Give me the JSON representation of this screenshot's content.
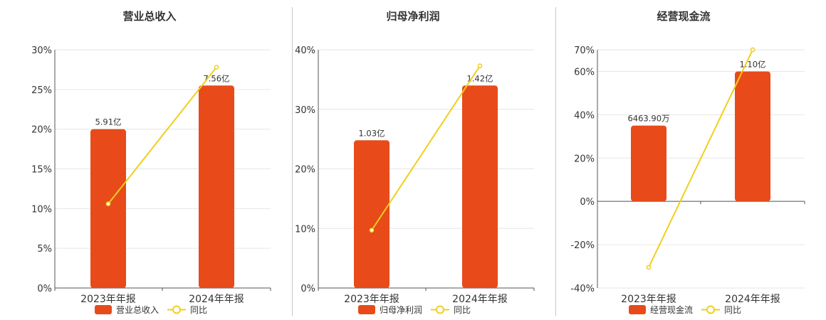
{
  "colors": {
    "bar": "#E84A1A",
    "line": "#F0CF1C",
    "point_fill": "#ffffff"
  },
  "chart_data": [
    {
      "type": "bar",
      "title": "营业总收入",
      "categories": [
        "2023年年报",
        "2024年年报"
      ],
      "series": [
        {
          "name": "营业总收入",
          "type": "bar",
          "values": [
            20,
            25.5
          ],
          "labels": [
            "5.91亿",
            "7.56亿"
          ]
        },
        {
          "name": "同比",
          "type": "line",
          "values": [
            10.6,
            27.8
          ]
        }
      ],
      "y_ticks": [
        "0%",
        "5%",
        "10%",
        "15%",
        "20%",
        "25%",
        "30%"
      ],
      "ylim": [
        0,
        30
      ],
      "legend_position": "bottom"
    },
    {
      "type": "bar",
      "title": "归母净利润",
      "categories": [
        "2023年年报",
        "2024年年报"
      ],
      "series": [
        {
          "name": "归母净利润",
          "type": "bar",
          "values": [
            24.8,
            34
          ],
          "labels": [
            "1.03亿",
            "1.42亿"
          ]
        },
        {
          "name": "同比",
          "type": "line",
          "values": [
            9.7,
            37.3
          ]
        }
      ],
      "y_ticks": [
        "0%",
        "10%",
        "20%",
        "30%",
        "40%"
      ],
      "ylim": [
        0,
        40
      ],
      "legend_position": "bottom"
    },
    {
      "type": "bar",
      "title": "经营现金流",
      "categories": [
        "2023年年报",
        "2024年年报"
      ],
      "series": [
        {
          "name": "经营现金流",
          "type": "bar",
          "values": [
            35,
            60
          ],
          "labels": [
            "6463.90万",
            "1.10亿"
          ]
        },
        {
          "name": "同比",
          "type": "line",
          "values": [
            -30.5,
            70
          ]
        }
      ],
      "y_ticks": [
        "-40%",
        "-20%",
        "0%",
        "20%",
        "40%",
        "60%",
        "70%"
      ],
      "ylim": [
        -40,
        70
      ],
      "legend_position": "bottom"
    }
  ]
}
